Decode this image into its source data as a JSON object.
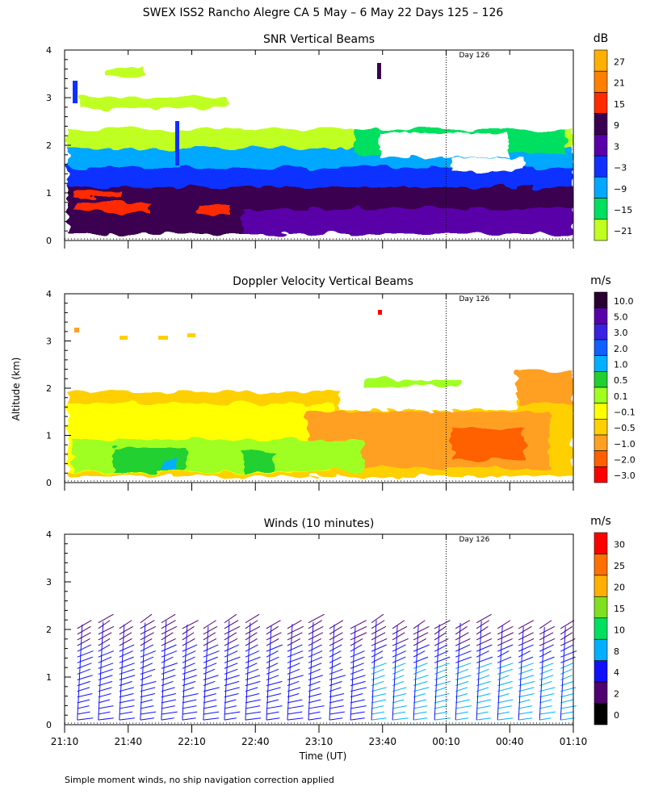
{
  "figure": {
    "title": "SWEX ISS2 Rancho Alegre CA   5 May –  6 May 22 Days 125 – 126",
    "ylabel": "Altitude (km)",
    "xlabel": "Time (UT)",
    "footnote": "Simple moment winds, no ship navigation correction applied",
    "day_marker_label": "Day 126",
    "time_ticks": [
      "21:10",
      "21:40",
      "22:10",
      "22:40",
      "23:10",
      "23:40",
      "00:10",
      "00:40",
      "01:10"
    ],
    "altitude_ticks": [
      "0",
      "1",
      "2",
      "3",
      "4"
    ]
  },
  "chart_data": [
    {
      "type": "heatmap",
      "title": "SNR Vertical Beams",
      "colorbar_unit": "dB",
      "colorbar_labels": [
        "27",
        "21",
        "15",
        "9",
        "3",
        "−3",
        "−9",
        "−15",
        "−21"
      ],
      "colorbar_colors": [
        "#ffb000",
        "#ff8000",
        "#ff2a00",
        "#3a0050",
        "#5a00a8",
        "#1030ff",
        "#00a8ff",
        "#00e060",
        "#c0ff20"
      ],
      "xlim_hours": [
        0,
        4
      ],
      "ylim_km": [
        0,
        4
      ],
      "day_marker_hours": 3.0,
      "layers": [
        {
          "value_band": "15 to 27",
          "color": "#ff2a00",
          "alt_range_km": [
            0.3,
            0.8
          ],
          "note": "patchy strong echo"
        },
        {
          "value_band": "3 to 15",
          "color": "#3a0050",
          "alt_range_km": [
            0.15,
            1.0
          ]
        },
        {
          "value_band": "-3 to 3",
          "color": "#1030ff",
          "alt_range_km": [
            0.9,
            1.45
          ]
        },
        {
          "value_band": "-9 to -3",
          "color": "#00a8ff",
          "alt_range_km": [
            1.4,
            1.85
          ]
        },
        {
          "value_band": "-21 to -9",
          "color": "#c0ff20",
          "alt_range_km": [
            1.8,
            2.4
          ]
        },
        {
          "value_band": "-21",
          "color": "#c0ff20",
          "alt_range_km": [
            2.9,
            3.1
          ],
          "note": "sparse upper echoes"
        }
      ]
    },
    {
      "type": "heatmap",
      "title": "Doppler Velocity Vertical Beams",
      "colorbar_unit": "m/s",
      "colorbar_labels": [
        "10.0",
        "5.0",
        "3.0",
        "2.0",
        "1.0",
        "0.5",
        "0.1",
        "−0.1",
        "−0.5",
        "−1.0",
        "−2.0",
        "−3.0"
      ],
      "colorbar_colors": [
        "#2a0030",
        "#5a00a8",
        "#3a20e0",
        "#1060ff",
        "#00b0ff",
        "#20d030",
        "#a0ff20",
        "#ffff00",
        "#ffd000",
        "#ffa020",
        "#ff6000",
        "#ff0000"
      ],
      "xlim_hours": [
        0,
        4
      ],
      "ylim_km": [
        0,
        4
      ],
      "day_marker_hours": 3.0,
      "layers": [
        {
          "value_band": "-0.1 to 0.1",
          "color": "#ffff00",
          "alt_range_km": [
            0.15,
            1.85
          ]
        },
        {
          "value_band": "-0.5 to -0.1",
          "color": "#ffd000",
          "alt_range_km": [
            0.2,
            1.9
          ]
        },
        {
          "value_band": "-1.0 to -0.5",
          "color": "#ffa020",
          "alt_range_km": [
            0.6,
            1.4
          ]
        },
        {
          "value_band": "0.1 to 0.5",
          "color": "#a0ff20",
          "alt_range_km": [
            0.2,
            1.2
          ]
        },
        {
          "value_band": "0.5 to 1.0",
          "color": "#20d030",
          "alt_range_km": [
            0.15,
            0.6
          ]
        }
      ]
    },
    {
      "type": "scatter",
      "title": "Winds (10 minutes)",
      "colorbar_unit": "m/s",
      "colorbar_labels": [
        "30",
        "25",
        "20",
        "15",
        "10",
        "8",
        "4",
        "2",
        "0"
      ],
      "colorbar_colors": [
        "#ff0000",
        "#ff7000",
        "#ffb000",
        "#80e020",
        "#00e060",
        "#00b0ff",
        "#1010ff",
        "#500070",
        "#000000"
      ],
      "xlim_hours": [
        0,
        4
      ],
      "ylim_km": [
        0,
        4
      ],
      "day_marker_hours": 3.0,
      "profile_interval_minutes": 10,
      "profile_count": 24,
      "typical_speed_ms": "4 to 8",
      "max_height_km": 2.2
    }
  ]
}
